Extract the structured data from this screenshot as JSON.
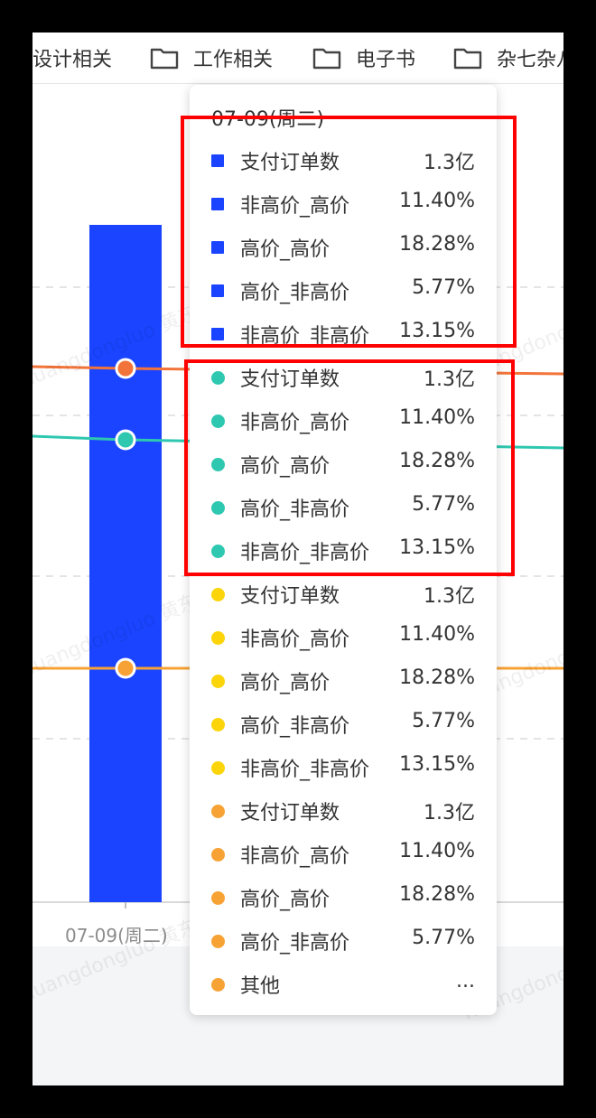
{
  "bookmarks": [
    {
      "label": "设计相关",
      "icon": "folder-icon"
    },
    {
      "label": "工作相关",
      "icon": "folder-icon"
    },
    {
      "label": "电子书",
      "icon": "folder-icon"
    },
    {
      "label": "杂七杂八",
      "icon": "folder-icon"
    }
  ],
  "watermark_text": "huangdongluo 黄东",
  "chart_data": {
    "type": "bar",
    "categories": [
      "07-09(周二)"
    ],
    "series": [
      {
        "name": "支付订单数",
        "type": "bar",
        "color": "#1a44ff",
        "values": [
          130000000
        ]
      },
      {
        "name": "",
        "type": "line",
        "color": "#f2743a"
      },
      {
        "name": "",
        "type": "line",
        "color": "#2ec7b0"
      },
      {
        "name": "",
        "type": "line",
        "color": "#f7a234"
      }
    ],
    "gridlines": "dashed",
    "xlabel": "",
    "ylabel": ""
  },
  "tooltip": {
    "title": "07-09(周二)",
    "groups": [
      {
        "color": "#1a44ff",
        "marker": "square",
        "rows": [
          {
            "name": "支付订单数",
            "value": "1.3亿"
          },
          {
            "name": "非高价_高价",
            "value": "11.40%"
          },
          {
            "name": "高价_高价",
            "value": "18.28%"
          },
          {
            "name": "高价_非高价",
            "value": "5.77%"
          },
          {
            "name": "非高价_非高价",
            "value": "13.15%"
          }
        ]
      },
      {
        "color": "#2ec7b0",
        "marker": "circle",
        "rows": [
          {
            "name": "支付订单数",
            "value": "1.3亿"
          },
          {
            "name": "非高价_高价",
            "value": "11.40%"
          },
          {
            "name": "高价_高价",
            "value": "18.28%"
          },
          {
            "name": "高价_非高价",
            "value": "5.77%"
          },
          {
            "name": "非高价_非高价",
            "value": "13.15%"
          }
        ]
      },
      {
        "color": "#fbd40a",
        "marker": "circle",
        "rows": [
          {
            "name": "支付订单数",
            "value": "1.3亿"
          },
          {
            "name": "非高价_高价",
            "value": "11.40%"
          },
          {
            "name": "高价_高价",
            "value": "18.28%"
          },
          {
            "name": "高价_非高价",
            "value": "5.77%"
          },
          {
            "name": "非高价_非高价",
            "value": "13.15%"
          }
        ]
      },
      {
        "color": "#f7a234",
        "marker": "circle",
        "rows": [
          {
            "name": "支付订单数",
            "value": "1.3亿"
          },
          {
            "name": "非高价_高价",
            "value": "11.40%"
          },
          {
            "name": "高价_高价",
            "value": "18.28%"
          },
          {
            "name": "高价_非高价",
            "value": "5.77%"
          },
          {
            "name": "其他",
            "value": "..."
          }
        ]
      }
    ]
  },
  "highlight_color": "#ff0000"
}
